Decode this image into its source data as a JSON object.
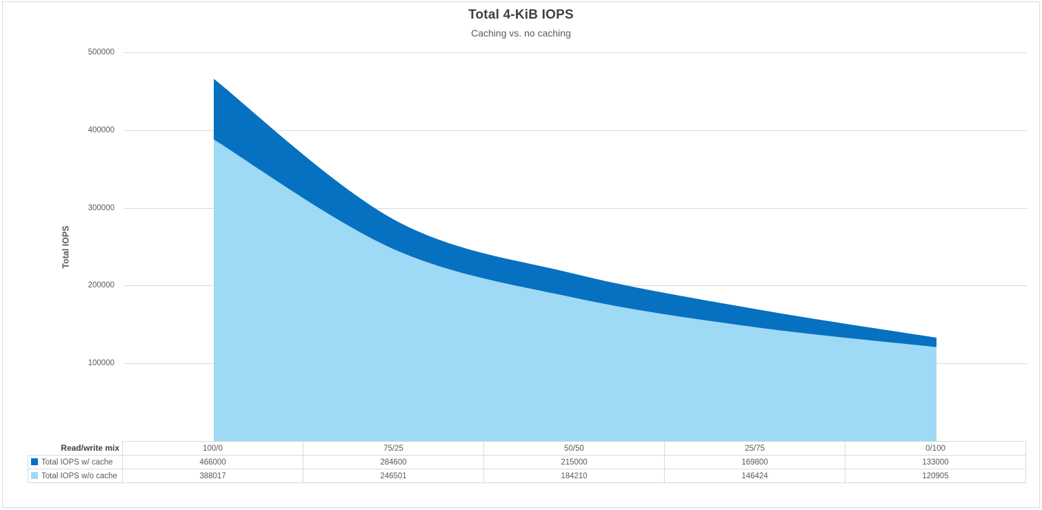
{
  "header": {
    "title": "Total 4-KiB IOPS",
    "subtitle": "Caching vs. no caching"
  },
  "y_axis": {
    "title": "Total IOPS",
    "ticks": [
      "500000",
      "400000",
      "300000",
      "200000",
      "100000"
    ]
  },
  "table": {
    "row_header_label": "Read/write mix",
    "columns": [
      "100/0",
      "75/25",
      "50/50",
      "25/75",
      "0/100"
    ],
    "rows": [
      {
        "label": "Total IOPS w/ cache",
        "values": [
          "466000",
          "284600",
          "215000",
          "169800",
          "133000"
        ]
      },
      {
        "label": "Total IOPS w/o cache",
        "values": [
          "388017",
          "246501",
          "184210",
          "146424",
          "120905"
        ]
      }
    ]
  },
  "chart_data": {
    "type": "area",
    "title": "Total 4-KiB IOPS",
    "subtitle": "Caching vs. no caching",
    "xlabel": "Read/write mix",
    "ylabel": "Total IOPS",
    "categories": [
      "100/0",
      "75/25",
      "50/50",
      "25/75",
      "0/100"
    ],
    "series": [
      {
        "name": "Total IOPS w/ cache",
        "color": "#0771C1",
        "values": [
          466000,
          284600,
          215000,
          169800,
          133000
        ]
      },
      {
        "name": "Total IOPS w/o cache",
        "color": "#9ED9F5",
        "values": [
          388017,
          246501,
          184210,
          146424,
          120905
        ]
      }
    ],
    "ylim": [
      0,
      500000
    ],
    "yticks": [
      100000,
      200000,
      300000,
      400000,
      500000
    ],
    "grid": true,
    "smoothed": true,
    "legend_position": "table-left"
  },
  "colors": {
    "series_with_cache": "#0771C1",
    "series_without_cache": "#9ED9F5",
    "gridline": "#D9D9D9",
    "table_border": "#D9D9D9",
    "frame_border": "#D9D9D9",
    "title_text": "#404040",
    "secondary_text": "#595959"
  }
}
